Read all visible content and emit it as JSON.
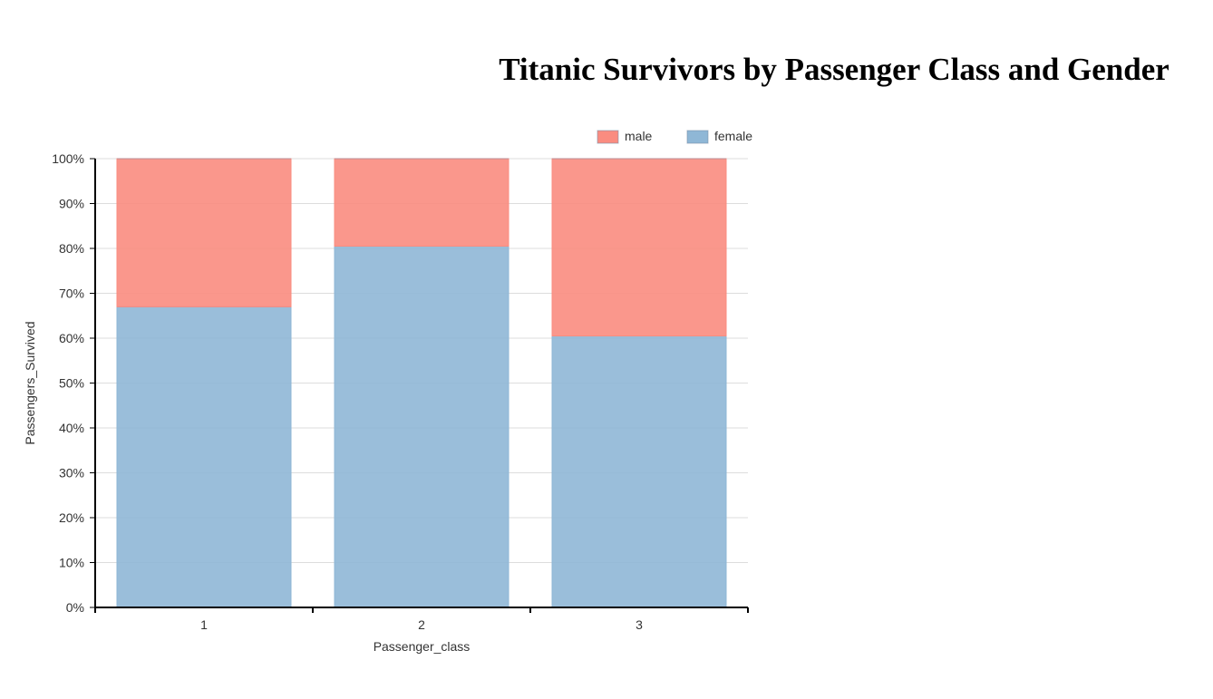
{
  "chart_data": {
    "type": "bar",
    "stacked": true,
    "normalized": true,
    "title": "Titanic Survivors by Passenger Class and Gender",
    "xlabel": "Passenger_class",
    "ylabel": "Passengers_Survived",
    "categories": [
      "1",
      "2",
      "3"
    ],
    "series": [
      {
        "name": "female",
        "values": [
          0.67,
          0.805,
          0.605
        ],
        "color": "#8fb7d6"
      },
      {
        "name": "male",
        "values": [
          0.33,
          0.195,
          0.395
        ],
        "color": "#fa8c80"
      }
    ],
    "legend_order": [
      "male",
      "female"
    ],
    "ylim": [
      0,
      1
    ],
    "yticks": [
      "0%",
      "10%",
      "20%",
      "30%",
      "40%",
      "50%",
      "60%",
      "70%",
      "80%",
      "90%",
      "100%"
    ],
    "grid": true,
    "legend_position": "top-right"
  }
}
